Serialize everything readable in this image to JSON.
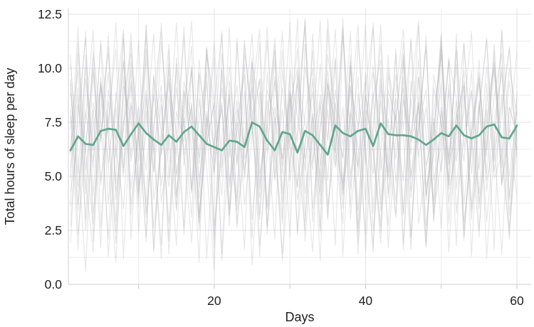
{
  "chart_data": {
    "type": "line",
    "xlabel": "Days",
    "ylabel": "Total hours of sleep per day",
    "x_tick_labels": [
      20,
      40,
      60
    ],
    "x_minor_ticks": [
      10,
      30,
      50
    ],
    "y_tick_labels": [
      "0.0",
      "2.5",
      "5.0",
      "7.5",
      "10.0",
      "12.5"
    ],
    "y_minor_ticks": [
      1.25,
      3.75,
      6.25,
      8.75,
      11.25
    ],
    "xlim": [
      0.7,
      61.9
    ],
    "ylim": [
      0,
      12.8
    ],
    "grid": "major and minor, light gray, on",
    "legend_position": "none",
    "days": [
      1,
      2,
      3,
      4,
      5,
      6,
      7,
      8,
      9,
      10,
      11,
      12,
      13,
      14,
      15,
      16,
      17,
      18,
      19,
      20,
      21,
      22,
      23,
      24,
      25,
      26,
      27,
      28,
      29,
      30,
      31,
      32,
      33,
      34,
      35,
      36,
      37,
      38,
      39,
      40,
      41,
      42,
      43,
      44,
      45,
      46,
      47,
      48,
      49,
      50,
      51,
      52,
      53,
      54,
      55,
      56,
      57,
      58,
      59,
      60
    ],
    "mean_series": {
      "name": "mean-sleep-hours",
      "color": "#5fa78c",
      "values": [
        6.2,
        6.85,
        6.5,
        6.45,
        7.1,
        7.2,
        7.15,
        6.4,
        6.95,
        7.45,
        7.0,
        6.7,
        6.45,
        6.9,
        6.6,
        7.05,
        7.3,
        6.9,
        6.5,
        6.35,
        6.2,
        6.65,
        6.6,
        6.35,
        7.5,
        7.3,
        6.65,
        6.2,
        7.05,
        6.95,
        6.1,
        7.1,
        6.9,
        6.45,
        6.0,
        7.35,
        7.0,
        6.85,
        7.1,
        7.2,
        6.4,
        7.45,
        6.95,
        6.9,
        6.9,
        6.85,
        6.7,
        6.45,
        6.7,
        7.0,
        6.85,
        7.35,
        6.9,
        6.75,
        6.9,
        7.3,
        7.4,
        6.8,
        6.75,
        7.35
      ]
    },
    "subject_series": {
      "color": "#b0b0b3",
      "opacity": 0.3,
      "lines": [
        [
          6.3,
          9.1,
          4.2,
          10.8,
          7.5,
          2.1,
          8.9,
          5.4,
          11.2,
          6.7,
          3.8,
          9.6,
          7.1,
          4.5,
          10.2,
          6.0,
          8.3,
          2.9,
          7.8,
          5.1,
          9.9,
          4.7,
          8.1,
          6.4,
          10.5,
          3.2,
          7.3,
          9.4,
          5.8,
          8.6,
          2.4,
          11.1,
          6.9,
          4.1,
          9.2,
          7.6,
          3.5,
          10.1,
          5.5,
          8.8,
          6.1,
          2.7,
          9.7,
          7.2,
          4.8,
          11.4,
          5.9,
          8.2,
          3.9,
          7.0,
          10.3,
          4.4,
          8.7,
          6.6,
          2.2,
          9.3,
          5.2,
          7.9,
          10.9,
          6.2
        ],
        [
          8.1,
          3.4,
          10.6,
          5.7,
          9.2,
          6.8,
          1.9,
          7.4,
          11.6,
          4.3,
          8.8,
          2.6,
          6.2,
          9.9,
          5.1,
          7.7,
          3.1,
          10.4,
          6.5,
          8.4,
          1.4,
          9.0,
          5.6,
          11.3,
          7.1,
          4.0,
          8.5,
          6.1,
          2.8,
          10.0,
          7.8,
          5.3,
          9.5,
          3.7,
          6.9,
          11.8,
          4.6,
          8.0,
          6.4,
          2.3,
          9.8,
          7.3,
          5.0,
          10.7,
          3.3,
          8.6,
          6.0,
          1.7,
          9.1,
          7.5,
          4.9,
          11.0,
          6.3,
          8.9,
          2.5,
          7.2,
          10.2,
          5.4,
          9.4,
          6.7
        ],
        [
          4.9,
          11.2,
          6.1,
          2.8,
          9.4,
          7.0,
          12.1,
          5.2,
          8.3,
          3.6,
          10.9,
          6.6,
          1.8,
          8.7,
          5.9,
          11.5,
          4.2,
          7.6,
          9.8,
          2.2,
          6.8,
          10.1,
          5.5,
          8.9,
          3.0,
          7.2,
          11.9,
          4.8,
          9.1,
          6.3,
          12.3,
          2.9,
          7.9,
          5.0,
          10.6,
          8.2,
          4.4,
          6.7,
          9.6,
          1.5,
          7.4,
          11.1,
          5.8,
          3.2,
          8.5,
          6.9,
          10.4,
          4.1,
          7.7,
          2.6,
          9.3,
          5.7,
          8.0,
          11.7,
          3.8,
          6.5,
          9.9,
          4.6,
          7.1,
          10.8
        ],
        [
          10.2,
          5.8,
          0.6,
          8.4,
          6.7,
          11.0,
          3.9,
          7.5,
          9.2,
          4.6,
          12.0,
          6.1,
          8.8,
          2.0,
          10.5,
          7.3,
          4.4,
          9.7,
          1.2,
          6.6,
          8.1,
          3.5,
          11.4,
          5.3,
          7.8,
          9.5,
          2.7,
          6.0,
          10.8,
          4.8,
          7.1,
          12.2,
          5.6,
          8.3,
          3.1,
          9.0,
          6.4,
          11.7,
          2.4,
          7.7,
          5.1,
          10.0,
          4.0,
          8.6,
          6.8,
          1.6,
          9.6,
          7.0,
          3.6,
          11.2,
          5.9,
          8.5,
          2.9,
          6.3,
          10.4,
          4.3,
          7.6,
          9.8,
          5.0,
          8.0
        ],
        [
          2.7,
          7.9,
          11.4,
          4.1,
          9.6,
          1.3,
          6.4,
          10.3,
          5.7,
          8.2,
          3.3,
          7.0,
          12.1,
          4.9,
          9.1,
          6.2,
          1.9,
          8.6,
          5.4,
          0.7,
          10.7,
          6.9,
          3.4,
          8.0,
          11.6,
          5.1,
          7.4,
          2.1,
          9.9,
          6.5,
          4.5,
          10.1,
          7.8,
          1.1,
          8.9,
          5.5,
          11.9,
          3.0,
          7.2,
          9.4,
          2.5,
          6.1,
          10.6,
          4.7,
          8.7,
          6.0,
          12.0,
          3.9,
          7.5,
          5.2,
          9.0,
          1.8,
          11.1,
          6.7,
          4.2,
          8.4,
          10.0,
          5.8,
          2.3,
          7.3
        ],
        [
          9.3,
          4.5,
          7.7,
          11.8,
          2.6,
          8.5,
          5.9,
          10.4,
          3.7,
          6.8,
          9.0,
          1.5,
          7.2,
          11.1,
          4.0,
          8.9,
          6.3,
          2.8,
          10.9,
          5.6,
          8.3,
          3.2,
          7.6,
          9.7,
          0.9,
          6.2,
          11.3,
          4.9,
          8.1,
          2.2,
          9.8,
          7.4,
          5.3,
          10.2,
          3.6,
          6.6,
          12.3,
          4.4,
          8.8,
          6.1,
          1.7,
          9.5,
          7.1,
          3.8,
          10.7,
          5.0,
          8.4,
          2.0,
          6.9,
          11.5,
          4.6,
          7.8,
          9.2,
          3.4,
          5.7,
          10.1,
          6.5,
          1.4,
          8.2,
          7.0
        ],
        [
          5.4,
          8.7,
          3.0,
          10.0,
          6.6,
          11.5,
          4.3,
          7.1,
          9.9,
          2.4,
          8.0,
          5.2,
          11.2,
          6.9,
          3.5,
          9.4,
          7.7,
          1.0,
          10.6,
          8.5,
          5.0,
          11.9,
          2.8,
          6.3,
          9.1,
          4.7,
          7.9,
          10.8,
          3.1,
          8.8,
          6.0,
          2.5,
          11.6,
          5.5,
          9.3,
          7.2,
          4.2,
          10.3,
          1.9,
          6.7,
          12.1,
          3.7,
          8.6,
          5.8,
          9.6,
          2.1,
          7.4,
          11.0,
          4.8,
          6.4,
          10.5,
          3.3,
          7.0,
          9.0,
          5.3,
          8.1,
          1.6,
          11.8,
          6.8,
          4.1
        ],
        [
          9.5,
          2.3,
          6.5,
          9.8,
          4.8,
          7.6,
          10.9,
          1.2,
          8.4,
          5.7,
          12.0,
          3.9,
          6.2,
          9.3,
          7.0,
          2.6,
          10.1,
          4.5,
          8.0,
          6.4,
          11.7,
          3.2,
          7.5,
          5.1,
          9.7,
          1.8,
          6.0,
          10.4,
          4.2,
          8.9,
          6.6,
          12.3,
          2.9,
          7.3,
          9.5,
          5.4,
          8.2,
          3.6,
          11.3,
          6.1,
          1.5,
          9.2,
          4.9,
          7.8,
          10.6,
          2.2,
          8.7,
          5.5,
          7.1,
          11.0,
          3.8,
          6.9,
          9.9,
          1.3,
          8.3,
          5.9,
          10.8,
          4.6,
          7.2,
          6.3
        ],
        [
          3.6,
          10.7,
          5.3,
          8.1,
          1.7,
          9.0,
          6.7,
          11.4,
          4.4,
          7.2,
          2.0,
          8.8,
          6.0,
          10.2,
          3.4,
          7.9,
          12.2,
          5.6,
          9.4,
          2.7,
          6.1,
          8.6,
          4.0,
          11.1,
          7.5,
          3.0,
          9.8,
          6.4,
          1.4,
          8.3,
          10.0,
          5.8,
          7.7,
          2.5,
          11.8,
          6.2,
          4.7,
          9.1,
          7.4,
          12.0,
          3.3,
          8.5,
          5.2,
          10.9,
          1.9,
          7.0,
          9.6,
          4.1,
          6.8,
          11.6,
          2.8,
          8.0,
          5.7,
          9.9,
          3.5,
          7.6,
          10.3,
          6.6,
          2.1,
          8.9
        ],
        [
          7.8,
          1.6,
          9.5,
          6.2,
          11.1,
          3.7,
          8.2,
          5.0,
          10.3,
          7.4,
          2.2,
          9.7,
          4.6,
          6.9,
          12.1,
          5.5,
          8.4,
          3.1,
          7.0,
          10.5,
          1.1,
          6.6,
          9.2,
          4.9,
          8.7,
          11.8,
          2.6,
          7.7,
          5.8,
          9.0,
          3.9,
          6.3,
          10.8,
          4.3,
          8.1,
          1.8,
          11.5,
          7.1,
          5.4,
          9.8,
          6.5,
          2.4,
          10.0,
          7.9,
          3.2,
          8.8,
          12.2,
          4.5,
          6.0,
          9.3,
          1.5,
          7.5,
          11.2,
          5.1,
          8.5,
          2.9,
          6.7,
          10.1,
          4.0,
          7.3
        ],
        [
          6.0,
          11.9,
          2.5,
          7.3,
          9.1,
          5.5,
          1.0,
          8.6,
          10.7,
          4.2,
          7.0,
          11.6,
          3.8,
          6.5,
          9.9,
          2.3,
          8.1,
          5.9,
          11.0,
          7.6,
          4.1,
          9.4,
          6.8,
          1.6,
          10.2,
          8.3,
          3.5,
          7.1,
          11.7,
          5.2,
          9.6,
          2.0,
          6.9,
          8.5,
          4.8,
          10.4,
          1.3,
          7.8,
          12.0,
          5.6,
          8.9,
          3.4,
          6.2,
          9.7,
          7.2,
          11.3,
          2.8,
          5.3,
          8.0,
          10.6,
          4.4,
          6.1,
          9.2,
          3.0,
          7.9,
          11.4,
          5.7,
          8.8,
          2.6,
          6.4
        ],
        [
          8.9,
          5.1,
          10.1,
          3.3,
          6.9,
          9.8,
          4.7,
          11.6,
          2.1,
          7.6,
          5.3,
          8.7,
          11.7,
          6.3,
          1.8,
          9.0,
          7.3,
          4.0,
          10.9,
          6.0,
          8.4,
          2.7,
          11.2,
          5.8,
          7.1,
          9.5,
          3.6,
          8.2,
          6.6,
          12.1,
          4.5,
          7.9,
          10.0,
          2.4,
          9.3,
          6.1,
          11.8,
          5.0,
          7.5,
          3.9,
          8.6,
          10.4,
          1.7,
          6.8,
          9.1,
          4.3,
          7.2,
          11.1,
          2.9,
          8.0,
          5.6,
          10.8,
          3.7,
          7.4,
          9.6,
          1.2,
          6.2,
          8.3,
          11.0,
          5.9
        ],
        [
          1.9,
          8.3,
          6.1,
          10.5,
          4.6,
          7.8,
          2.9,
          9.6,
          5.9,
          11.3,
          3.1,
          7.4,
          9.2,
          1.4,
          8.0,
          6.6,
          10.0,
          4.9,
          7.1,
          11.2,
          5.4,
          8.8,
          2.6,
          6.9,
          10.3,
          4.4,
          9.0,
          7.7,
          1.1,
          5.7,
          8.5,
          11.9,
          3.5,
          7.2,
          9.9,
          6.3,
          2.8,
          10.6,
          5.0,
          8.1,
          6.7,
          12.0,
          4.2,
          7.9,
          1.6,
          9.4,
          6.5,
          11.5,
          3.0,
          8.2,
          5.8,
          10.2,
          2.2,
          7.0,
          9.8,
          4.8,
          6.4,
          11.7,
          3.9,
          8.6
        ],
        [
          4.3,
          6.7,
          11.7,
          2.0,
          9.3,
          5.6,
          8.5,
          11.8,
          3.2,
          7.0,
          10.4,
          1.6,
          6.8,
          9.5,
          4.1,
          8.2,
          11.0,
          2.5,
          7.7,
          5.2,
          9.1,
          6.4,
          3.8,
          10.7,
          8.0,
          1.3,
          7.5,
          11.4,
          5.1,
          9.7,
          2.3,
          6.6,
          8.9,
          4.7,
          12.3,
          7.3,
          5.9,
          10.1,
          3.4,
          8.7,
          6.2,
          1.9,
          9.0,
          7.6,
          11.2,
          4.0,
          8.4,
          2.7,
          6.1,
          10.9,
          5.5,
          7.2,
          9.4,
          3.6,
          8.1,
          11.3,
          4.9,
          6.0,
          10.0,
          7.8
        ],
        [
          10.6,
          3.7,
          8.0,
          5.4,
          11.3,
          6.9,
          2.4,
          9.2,
          7.6,
          4.0,
          8.6,
          6.2,
          1.2,
          10.8,
          5.0,
          7.3,
          9.9,
          3.3,
          6.5,
          8.4,
          11.6,
          4.5,
          7.0,
          10.2,
          2.1,
          8.9,
          6.1,
          11.1,
          3.8,
          7.5,
          9.3,
          5.7,
          1.5,
          8.8,
          6.7,
          10.5,
          4.1,
          7.9,
          2.6,
          9.1,
          11.9,
          5.3,
          7.7,
          3.1,
          10.3,
          6.6,
          8.3,
          1.8,
          9.7,
          7.4,
          4.6,
          11.6,
          2.5,
          6.3,
          9.5,
          5.1,
          8.7,
          10.7,
          3.2,
          7.1
        ],
        [
          7.2,
          9.9,
          4.8,
          1.5,
          8.1,
          10.7,
          6.3,
          3.5,
          9.4,
          7.1,
          11.5,
          5.2,
          8.3,
          2.8,
          6.7,
          11.9,
          4.3,
          9.8,
          7.4,
          1.7,
          10.0,
          5.9,
          8.5,
          3.7,
          6.8,
          11.2,
          2.3,
          9.6,
          5.5,
          7.8,
          10.9,
          4.2,
          6.9,
          12.2,
          3.0,
          8.4,
          5.8,
          9.2,
          1.4,
          7.6,
          10.1,
          6.0,
          2.7,
          8.9,
          11.8,
          4.9,
          7.3,
          9.0,
          3.3,
          5.6,
          10.4,
          8.6,
          2.0,
          7.0,
          9.3,
          6.2,
          11.1,
          4.7,
          8.2,
          6.9
        ]
      ]
    }
  },
  "style": {
    "accent_green": "#5fa78c",
    "subject_gray": "#b0b0b3",
    "grid_major": "#e2e2e6",
    "grid_minor": "#ebebee",
    "spine": "#d6d6da",
    "tick_mark": "#c9c9cd",
    "text_color": "#1e1e1e",
    "background": "#ffffff"
  }
}
